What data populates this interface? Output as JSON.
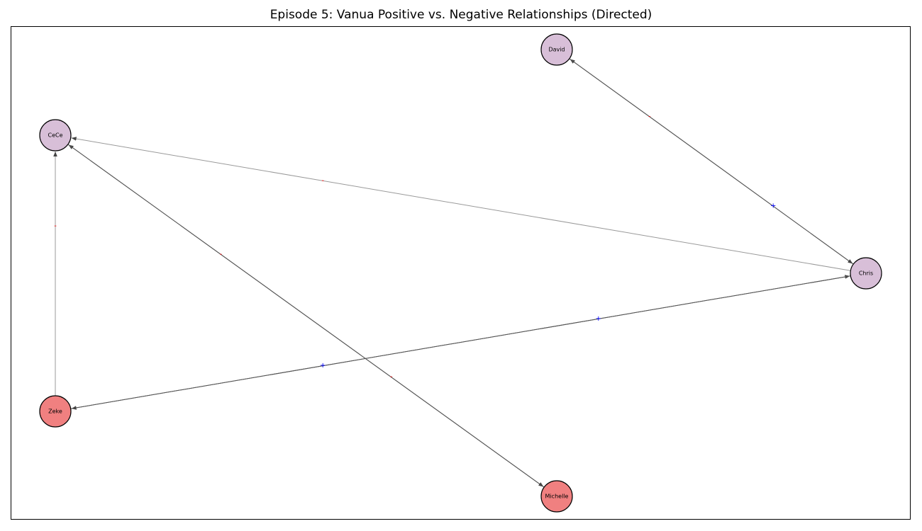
{
  "title": "Episode 5: Vanua Positive vs. Negative Relationships (Directed)",
  "colors": {
    "positive": "#0000ff",
    "negative": "#ff0000",
    "edge_dark": "#555555",
    "edge_light": "#999999",
    "node_purple": "#d8bfd8",
    "node_red": "#f08080",
    "node_border": "#000000"
  },
  "nodes": [
    {
      "id": "david",
      "label": "David",
      "color": "node_purple"
    },
    {
      "id": "cece",
      "label": "CeCe",
      "color": "node_purple"
    },
    {
      "id": "chris",
      "label": "Chris",
      "color": "node_purple"
    },
    {
      "id": "zeke",
      "label": "Zeke",
      "color": "node_red"
    },
    {
      "id": "michelle",
      "label": "Michelle",
      "color": "node_red"
    }
  ],
  "edges": [
    {
      "source": "chris",
      "target": "david",
      "sign": "-"
    },
    {
      "source": "david",
      "target": "chris",
      "sign": "+"
    },
    {
      "source": "chris",
      "target": "cece",
      "sign": "-"
    },
    {
      "source": "zeke",
      "target": "chris",
      "sign": "+"
    },
    {
      "source": "chris",
      "target": "zeke",
      "sign": "+"
    },
    {
      "source": "zeke",
      "target": "cece",
      "sign": "-"
    },
    {
      "source": "michelle",
      "target": "cece",
      "sign": "-"
    },
    {
      "source": "cece",
      "target": "michelle",
      "sign": "-"
    }
  ]
}
